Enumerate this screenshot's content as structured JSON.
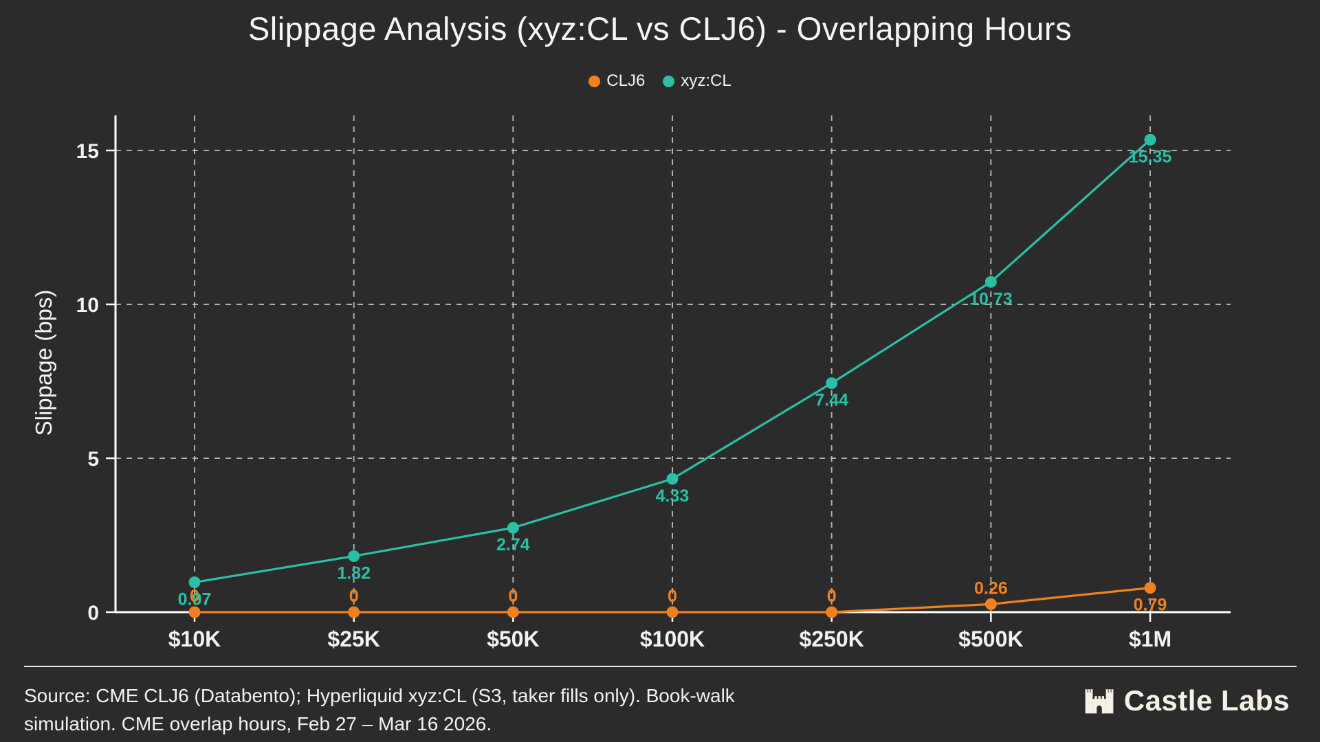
{
  "title": "Slippage Analysis (xyz:CL vs CLJ6) - Overlapping Hours",
  "colors": {
    "background": "#2b2b2b",
    "orange": "#f1801f",
    "teal": "#2bbfa5",
    "text": "#f2f2f2",
    "grid": "#c7c7c7",
    "axis": "#ffffff",
    "cream": "#f5f1e6"
  },
  "legend": {
    "items": [
      {
        "label": "CLJ6",
        "color": "#f1801f"
      },
      {
        "label": "xyz:CL",
        "color": "#2bbfa5"
      }
    ]
  },
  "chart_data": {
    "type": "line",
    "title": "Slippage Analysis (xyz:CL vs CLJ6) - Overlapping Hours",
    "categories": [
      "$10K",
      "$25K",
      "$50K",
      "$100K",
      "$250K",
      "$500K",
      "$1M"
    ],
    "series": [
      {
        "name": "CLJ6",
        "color": "#f1801f",
        "values": [
          0,
          0,
          0,
          0,
          0,
          0.26,
          0.79
        ],
        "labels": [
          "0",
          "0",
          "0",
          "0",
          "0",
          "0.26",
          "0.79"
        ],
        "label_positions": [
          "above",
          "above",
          "above",
          "above",
          "above",
          "above",
          "below"
        ]
      },
      {
        "name": "xyz:CL",
        "color": "#2bbfa5",
        "values": [
          0.97,
          1.82,
          2.74,
          4.33,
          7.44,
          10.73,
          15.35
        ],
        "labels": [
          "0.97",
          "1.82",
          "2.74",
          "4.33",
          "7.44",
          "10.73",
          "15.35"
        ],
        "label_positions": [
          "below",
          "below",
          "below",
          "below",
          "below",
          "below",
          "below"
        ]
      }
    ],
    "xlabel": "",
    "ylabel": "Slippage (bps)",
    "yticks": [
      0,
      5,
      10,
      15
    ],
    "ylim": [
      0,
      16.1
    ],
    "grid": true,
    "legend_position": "top"
  },
  "footer": {
    "source_line1": "Source: CME CLJ6 (Databento); Hyperliquid xyz:CL (S3, taker fills only). Book-walk",
    "source_line2": "simulation. CME overlap hours, Feb 27 – Mar 16 2026.",
    "brand": "Castle Labs"
  }
}
